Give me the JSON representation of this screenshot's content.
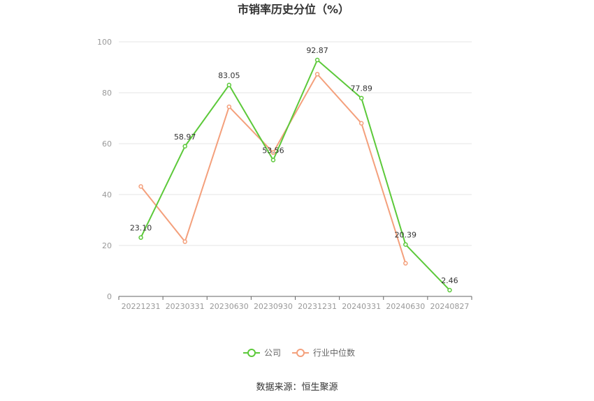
{
  "chart_data": {
    "type": "line",
    "title": "市销率历史分位（%）",
    "categories": [
      "20221231",
      "20230331",
      "20230630",
      "20230930",
      "20231231",
      "20240331",
      "20240630",
      "20240827"
    ],
    "ylim": [
      0,
      100
    ],
    "yticks": [
      0,
      20,
      40,
      60,
      80,
      100
    ],
    "grid": true,
    "legend_position": "bottom-center",
    "series": [
      {
        "name": "公司",
        "color": "#5cc93a",
        "values": [
          23.1,
          58.97,
          83.05,
          53.56,
          92.87,
          77.89,
          20.39,
          2.46
        ],
        "labels": [
          "23.10",
          "58.97",
          "83.05",
          "53.56",
          "92.87",
          "77.89",
          "20.39",
          "2.46"
        ]
      },
      {
        "name": "行业中位数",
        "color": "#f4a07c",
        "values": [
          43.2,
          21.5,
          74.5,
          56.5,
          87.3,
          68.0,
          13.0,
          null
        ]
      }
    ]
  },
  "source_text": "数据来源：恒生聚源"
}
